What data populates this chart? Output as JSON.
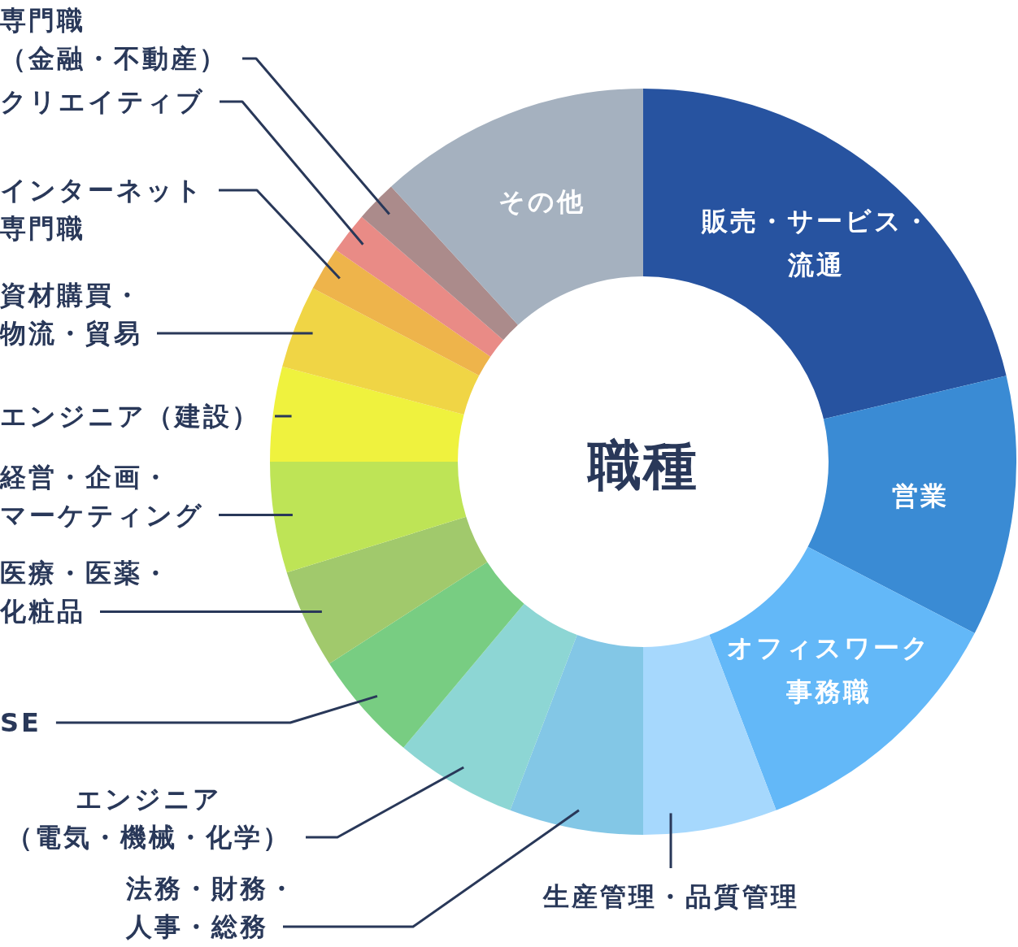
{
  "chart_data": {
    "type": "donut",
    "title": "職種",
    "categories": [
      "販売・サービス・流通",
      "営業",
      "オフィスワーク事務職",
      "生産管理・品質管理",
      "法務・財務・人事・総務",
      "エンジニア（電気・機械・化学）",
      "SE",
      "医療・医薬・化粧品",
      "経営・企画・マーケティング",
      "エンジニア（建設）",
      "資材購買・物流・貿易",
      "インターネット専門職",
      "クリエイティブ",
      "専門職（金融・不動産）",
      "その他"
    ],
    "values": [
      21.3,
      11.3,
      11.6,
      5.8,
      5.8,
      5.3,
      4.8,
      4.3,
      4.8,
      4.1,
      3.6,
      1.9,
      1.8,
      1.8,
      11.8
    ],
    "colors": [
      "#2753a0",
      "#3a8bd4",
      "#63b8f8",
      "#a6d8fd",
      "#83c7e6",
      "#8dd6d4",
      "#78cd82",
      "#a1c96c",
      "#bee456",
      "#eff23e",
      "#f0d545",
      "#eeb44b",
      "#e98b86",
      "#ab8b8b",
      "#a5b1bf"
    ]
  }
}
